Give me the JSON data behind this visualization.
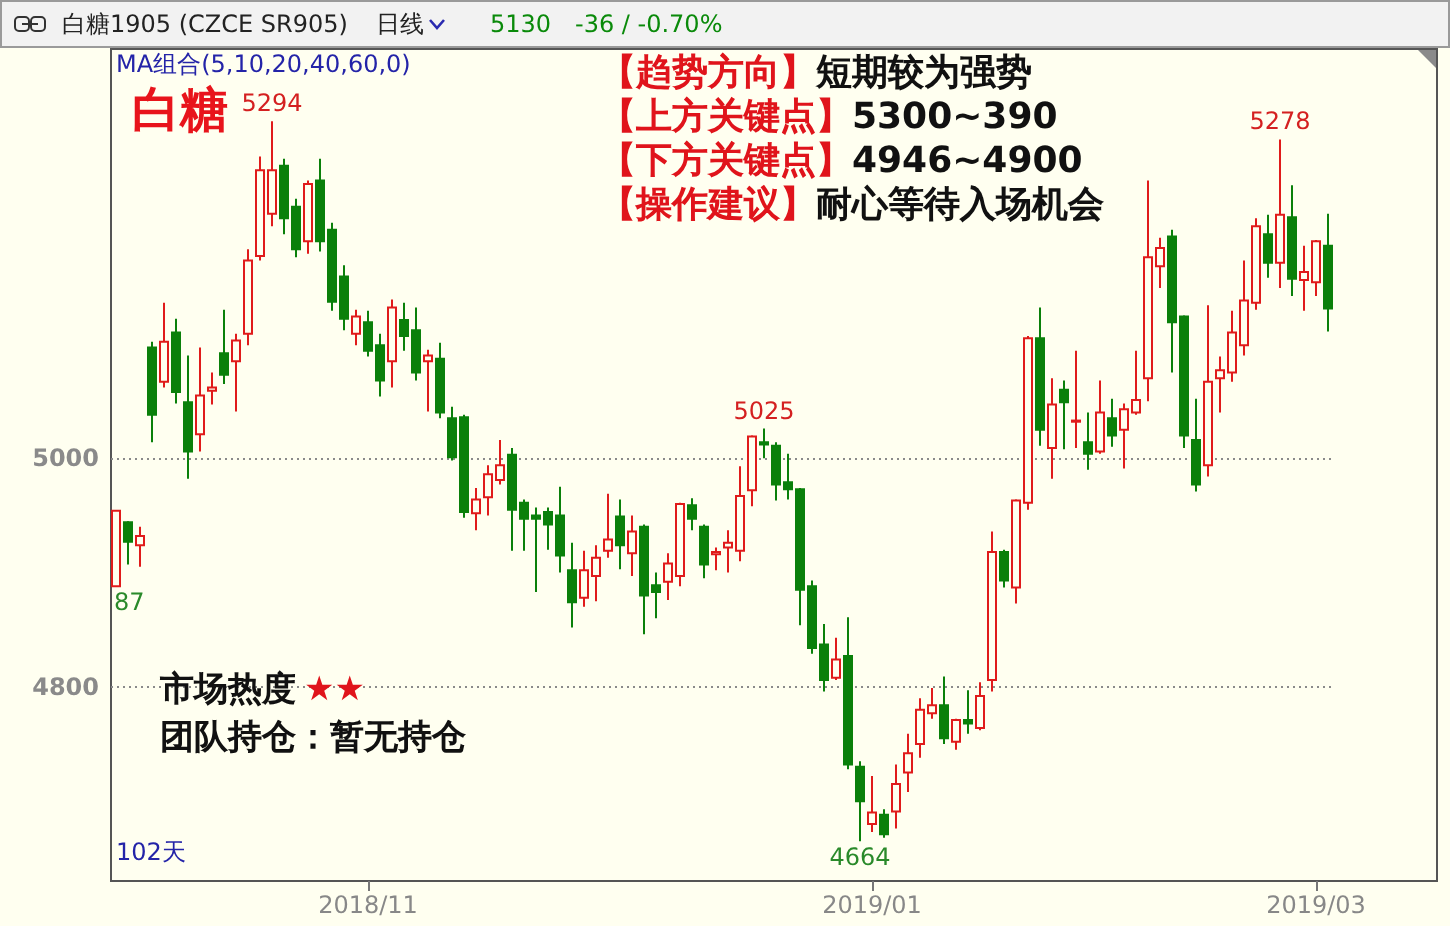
{
  "chart_data": {
    "type": "candlestick",
    "title": "白糖",
    "subtitle": "白糖1905 (CZCE SR905)",
    "categories": [
      null,
      null,
      null,
      null,
      null,
      null,
      null,
      null,
      null,
      null,
      null,
      null,
      null,
      null,
      null,
      null,
      null,
      null,
      null,
      null,
      null,
      "2018/11",
      null,
      null,
      null,
      null,
      null,
      null,
      null,
      null,
      null,
      null,
      null,
      null,
      null,
      null,
      null,
      null,
      null,
      null,
      null,
      null,
      null,
      null,
      null,
      null,
      null,
      null,
      null,
      null,
      null,
      null,
      null,
      null,
      null,
      null,
      null,
      null,
      null,
      null,
      null,
      null,
      null,
      "2019/01",
      null,
      null,
      null,
      null,
      null,
      null,
      null,
      null,
      null,
      null,
      null,
      null,
      null,
      null,
      null,
      null,
      null,
      null,
      null,
      null,
      null,
      null,
      null,
      null,
      null,
      null,
      null,
      null,
      null,
      null,
      null,
      null,
      null,
      null,
      null,
      null,
      "2019/03",
      null
    ],
    "ohlc": [
      [
        4887,
        4953,
        4887,
        4953
      ],
      [
        4943,
        4944,
        4906,
        4926
      ],
      [
        4923,
        4939,
        4904,
        4931
      ],
      [
        5096,
        5101,
        5013,
        5037
      ],
      [
        5066,
        5135,
        5061,
        5101
      ],
      [
        5109,
        5121,
        5047,
        5057
      ],
      [
        5048,
        5089,
        4981,
        5005
      ],
      [
        5020,
        5096,
        5005,
        5054
      ],
      [
        5058,
        5074,
        5046,
        5061
      ],
      [
        5091,
        5129,
        5064,
        5072
      ],
      [
        5084,
        5108,
        5040,
        5102
      ],
      [
        5108,
        5182,
        5098,
        5172
      ],
      [
        5176,
        5263,
        5172,
        5251
      ],
      [
        5213,
        5294,
        5202,
        5251
      ],
      [
        5255,
        5261,
        5195,
        5209
      ],
      [
        5219,
        5226,
        5175,
        5182
      ],
      [
        5189,
        5242,
        5178,
        5239
      ],
      [
        5242,
        5261,
        5180,
        5189
      ],
      [
        5199,
        5205,
        5128,
        5136
      ],
      [
        5158,
        5168,
        5111,
        5121
      ],
      [
        5108,
        5129,
        5098,
        5123
      ],
      [
        5118,
        5128,
        5088,
        5093
      ],
      [
        5098,
        5108,
        5053,
        5067
      ],
      [
        5084,
        5138,
        5061,
        5131
      ],
      [
        5120,
        5135,
        5093,
        5106
      ],
      [
        5111,
        5131,
        5067,
        5074
      ],
      [
        5084,
        5094,
        5040,
        5089
      ],
      [
        5086,
        5100,
        5034,
        5039
      ],
      [
        5034,
        5044,
        4997,
        5000
      ],
      [
        5035,
        5037,
        4947,
        4952
      ],
      [
        4951,
        4973,
        4936,
        4963
      ],
      [
        4965,
        4993,
        4949,
        4985
      ],
      [
        4980,
        5015,
        4976,
        4993
      ],
      [
        5002,
        5008,
        4918,
        4954
      ],
      [
        4960,
        4963,
        4918,
        4946
      ],
      [
        4949,
        4956,
        4882,
        4946
      ],
      [
        4952,
        4956,
        4919,
        4941
      ],
      [
        4949,
        4974,
        4899,
        4914
      ],
      [
        4901,
        4925,
        4851,
        4873
      ],
      [
        4877,
        4918,
        4869,
        4901
      ],
      [
        4896,
        4923,
        4874,
        4912
      ],
      [
        4918,
        4968,
        4912,
        4928
      ],
      [
        4948,
        4963,
        4902,
        4923
      ],
      [
        4916,
        4949,
        4896,
        4935
      ],
      [
        4939,
        4941,
        4845,
        4879
      ],
      [
        4888,
        4899,
        4859,
        4882
      ],
      [
        4891,
        4916,
        4875,
        4907
      ],
      [
        4896,
        4960,
        4887,
        4959
      ],
      [
        4958,
        4964,
        4936,
        4946
      ],
      [
        4939,
        4941,
        4894,
        4906
      ],
      [
        4915,
        4921,
        4901,
        4917
      ],
      [
        4921,
        4936,
        4899,
        4925
      ],
      [
        4918,
        4992,
        4909,
        4966
      ],
      [
        4971,
        5019,
        4957,
        5018
      ],
      [
        5013,
        5025,
        4999,
        5011
      ],
      [
        5010,
        5013,
        4962,
        4976
      ],
      [
        4978,
        5003,
        4963,
        4972
      ],
      [
        4972,
        4973,
        4853,
        4884
      ],
      [
        4887,
        4892,
        4828,
        4833
      ],
      [
        4836,
        4854,
        4795,
        4805
      ],
      [
        4807,
        4842,
        4805,
        4823
      ],
      [
        4826,
        4860,
        4727,
        4731
      ],
      [
        4729,
        4734,
        4664,
        4699
      ],
      [
        4679,
        4721,
        4672,
        4689
      ],
      [
        4687,
        4692,
        4667,
        4670
      ],
      [
        4690,
        4731,
        4675,
        4714
      ],
      [
        4724,
        4758,
        4707,
        4741
      ],
      [
        4749,
        4789,
        4737,
        4779
      ],
      [
        4776,
        4798,
        4771,
        4783
      ],
      [
        4783,
        4808,
        4749,
        4754
      ],
      [
        4751,
        4771,
        4744,
        4770
      ],
      [
        4770,
        4796,
        4758,
        4767
      ],
      [
        4763,
        4803,
        4761,
        4791
      ],
      [
        4805,
        4935,
        4795,
        4917
      ],
      [
        4917,
        4919,
        4886,
        4892
      ],
      [
        4886,
        4963,
        4872,
        4962
      ],
      [
        4960,
        5106,
        4954,
        5104
      ],
      [
        5104,
        5131,
        5010,
        5024
      ],
      [
        5008,
        5069,
        4981,
        5046
      ],
      [
        5059,
        5067,
        5007,
        5048
      ],
      [
        5031,
        5093,
        5008,
        5032
      ],
      [
        5013,
        5039,
        4989,
        5003
      ],
      [
        5005,
        5067,
        5003,
        5039
      ],
      [
        5034,
        5051,
        5009,
        5019
      ],
      [
        5024,
        5047,
        4990,
        5042
      ],
      [
        5039,
        5093,
        5037,
        5050
      ],
      [
        5069,
        5242,
        5049,
        5175
      ],
      [
        5167,
        5192,
        5148,
        5183
      ],
      [
        5193,
        5199,
        5074,
        5118
      ],
      [
        5123,
        5124,
        5008,
        5019
      ],
      [
        5015,
        5051,
        4970,
        4976
      ],
      [
        4993,
        5133,
        4983,
        5066
      ],
      [
        5069,
        5088,
        5039,
        5076
      ],
      [
        5074,
        5128,
        5066,
        5109
      ],
      [
        5098,
        5172,
        5089,
        5137
      ],
      [
        5135,
        5209,
        5129,
        5202
      ],
      [
        5195,
        5212,
        5157,
        5170
      ],
      [
        5170,
        5278,
        5148,
        5212
      ],
      [
        5210,
        5238,
        5141,
        5156
      ],
      [
        5155,
        5185,
        5128,
        5162
      ],
      [
        5153,
        5190,
        5141,
        5189
      ],
      [
        5185,
        5213,
        5110,
        5130
      ]
    ],
    "colors": [
      "#e01b1b",
      "#0a800a",
      "#e01b1b",
      "#0a800a",
      "#e01b1b",
      "#0a800a",
      "#0a800a",
      "#e01b1b",
      "#e01b1b",
      "#0a800a",
      "#e01b1b",
      "#e01b1b",
      "#e01b1b",
      "#e01b1b",
      "#0a800a",
      "#0a800a",
      "#e01b1b",
      "#0a800a",
      "#0a800a",
      "#0a800a",
      "#e01b1b",
      "#0a800a",
      "#0a800a",
      "#e01b1b",
      "#0a800a",
      "#0a800a",
      "#e01b1b",
      "#0a800a",
      "#0a800a",
      "#0a800a",
      "#e01b1b",
      "#e01b1b",
      "#e01b1b",
      "#0a800a",
      "#0a800a",
      "#0a800a",
      "#0a800a",
      "#0a800a",
      "#0a800a",
      "#e01b1b",
      "#e01b1b",
      "#e01b1b",
      "#0a800a",
      "#e01b1b",
      "#0a800a",
      "#0a800a",
      "#e01b1b",
      "#e01b1b",
      "#0a800a",
      "#0a800a",
      "#e01b1b",
      "#e01b1b",
      "#e01b1b",
      "#e01b1b",
      "#0a800a",
      "#0a800a",
      "#0a800a",
      "#0a800a",
      "#0a800a",
      "#0a800a",
      "#e01b1b",
      "#0a800a",
      "#0a800a",
      "#e01b1b",
      "#0a800a",
      "#e01b1b",
      "#e01b1b",
      "#e01b1b",
      "#e01b1b",
      "#0a800a",
      "#e01b1b",
      "#0a800a",
      "#e01b1b",
      "#e01b1b",
      "#0a800a",
      "#e01b1b",
      "#e01b1b",
      "#0a800a",
      "#e01b1b",
      "#0a800a",
      "#e01b1b",
      "#0a800a",
      "#e01b1b",
      "#0a800a",
      "#e01b1b",
      "#e01b1b",
      "#e01b1b",
      "#e01b1b",
      "#0a800a",
      "#0a800a",
      "#0a800a",
      "#e01b1b",
      "#e01b1b",
      "#e01b1b",
      "#e01b1b",
      "#e01b1b",
      "#0a800a",
      "#e01b1b",
      "#0a800a",
      "#e01b1b",
      "#e01b1b",
      "#0a800a"
    ],
    "ylim": [
      4630,
      5358
    ],
    "yticks": [
      4800,
      5000
    ],
    "grid": "y",
    "annotations": [
      "日线",
      "5130",
      "-36 / -0.70%",
      "MA组合(5,10,20,40,60,0)",
      "市场热度",
      "★★",
      "团队持仓：暂无持仓",
      "【趋势方向】",
      "短期较为强势",
      "【上方关键点】",
      "5300~390",
      "【下方关键点】",
      "4946~4900",
      "【操作建议】",
      "耐心等待入场机会",
      "102天",
      {
        "text": "5294",
        "y": 5294
      },
      {
        "text": "5025",
        "y": 5025
      },
      {
        "text": "4664",
        "y": 4664
      },
      {
        "text": "5278",
        "y": 5278
      },
      {
        "text": "87",
        "y": 4887
      }
    ]
  }
}
